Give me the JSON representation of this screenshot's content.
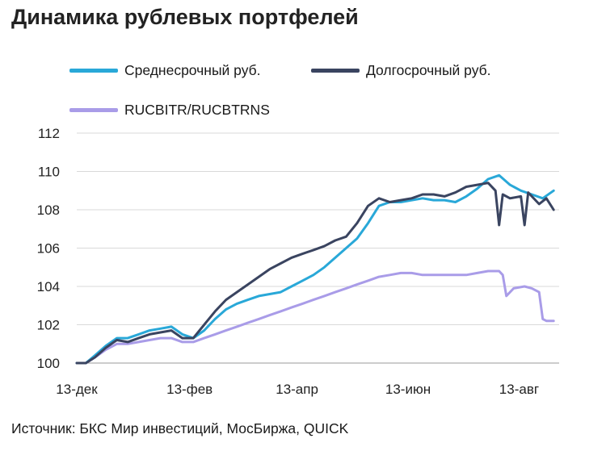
{
  "chart_data": {
    "type": "line",
    "title": "Динамика рублевых портфелей",
    "xlabel": "",
    "ylabel": "",
    "x_tick_labels": [
      "13-дек",
      "13-фев",
      "13-апр",
      "13-июн",
      "13-авг"
    ],
    "y_ticks": [
      100,
      102,
      104,
      106,
      108,
      110,
      112
    ],
    "ylim": [
      100,
      112
    ],
    "xlim": [
      0,
      265
    ],
    "x_unit": "days since 13-дек",
    "x_tick_positions": [
      0,
      62,
      121,
      182,
      243
    ],
    "grid": "horizontal",
    "legend_position": "top",
    "source": "Источник: БКС Мир инвестиций, МосБиржа, QUICK",
    "series": [
      {
        "name": "Среднесрочный руб.",
        "color": "#29a8d8",
        "x": [
          0,
          5,
          10,
          16,
          22,
          28,
          34,
          40,
          46,
          52,
          58,
          64,
          70,
          76,
          82,
          88,
          94,
          100,
          106,
          112,
          118,
          124,
          130,
          136,
          142,
          148,
          154,
          160,
          166,
          172,
          178,
          184,
          190,
          196,
          202,
          208,
          214,
          220,
          226,
          232,
          238,
          244,
          250,
          256,
          262
        ],
        "y": [
          100.0,
          100.0,
          100.4,
          100.9,
          101.3,
          101.3,
          101.5,
          101.7,
          101.8,
          101.9,
          101.5,
          101.3,
          101.7,
          102.3,
          102.8,
          103.1,
          103.3,
          103.5,
          103.6,
          103.7,
          104.0,
          104.3,
          104.6,
          105.0,
          105.5,
          106.0,
          106.5,
          107.3,
          108.2,
          108.4,
          108.4,
          108.5,
          108.6,
          108.5,
          108.5,
          108.4,
          108.7,
          109.1,
          109.6,
          109.8,
          109.3,
          109.0,
          108.8,
          108.6,
          109.0
        ]
      },
      {
        "name": "Долгосрочный руб.",
        "color": "#3a4460",
        "x": [
          0,
          5,
          10,
          16,
          22,
          28,
          34,
          40,
          46,
          52,
          58,
          64,
          70,
          76,
          82,
          88,
          94,
          100,
          106,
          112,
          118,
          124,
          130,
          136,
          142,
          148,
          154,
          160,
          166,
          172,
          178,
          184,
          190,
          196,
          202,
          208,
          214,
          220,
          226,
          230,
          232,
          234,
          238,
          244,
          246,
          248,
          250,
          254,
          258,
          262
        ],
        "y": [
          100.0,
          100.0,
          100.3,
          100.8,
          101.2,
          101.1,
          101.3,
          101.5,
          101.6,
          101.7,
          101.3,
          101.3,
          102.0,
          102.7,
          103.3,
          103.7,
          104.1,
          104.5,
          104.9,
          105.2,
          105.5,
          105.7,
          105.9,
          106.1,
          106.4,
          106.6,
          107.3,
          108.2,
          108.6,
          108.4,
          108.5,
          108.6,
          108.8,
          108.8,
          108.7,
          108.9,
          109.2,
          109.3,
          109.4,
          109.0,
          107.2,
          108.8,
          108.6,
          108.7,
          107.2,
          108.9,
          108.7,
          108.3,
          108.6,
          108.0
        ]
      },
      {
        "name": "RUCBITR/RUCBTRNS",
        "color": "#a99ce8",
        "x": [
          0,
          5,
          10,
          16,
          22,
          28,
          34,
          40,
          46,
          52,
          58,
          64,
          70,
          76,
          82,
          88,
          94,
          100,
          106,
          112,
          118,
          124,
          130,
          136,
          142,
          148,
          154,
          160,
          166,
          172,
          178,
          184,
          190,
          196,
          202,
          208,
          214,
          220,
          226,
          232,
          234,
          236,
          240,
          246,
          250,
          254,
          256,
          258,
          262
        ],
        "y": [
          100.0,
          100.0,
          100.3,
          100.7,
          101.0,
          101.0,
          101.1,
          101.2,
          101.3,
          101.3,
          101.1,
          101.1,
          101.3,
          101.5,
          101.7,
          101.9,
          102.1,
          102.3,
          102.5,
          102.7,
          102.9,
          103.1,
          103.3,
          103.5,
          103.7,
          103.9,
          104.1,
          104.3,
          104.5,
          104.6,
          104.7,
          104.7,
          104.6,
          104.6,
          104.6,
          104.6,
          104.6,
          104.7,
          104.8,
          104.8,
          104.6,
          103.5,
          103.9,
          104.0,
          103.9,
          103.7,
          102.3,
          102.2,
          102.2
        ]
      }
    ]
  }
}
